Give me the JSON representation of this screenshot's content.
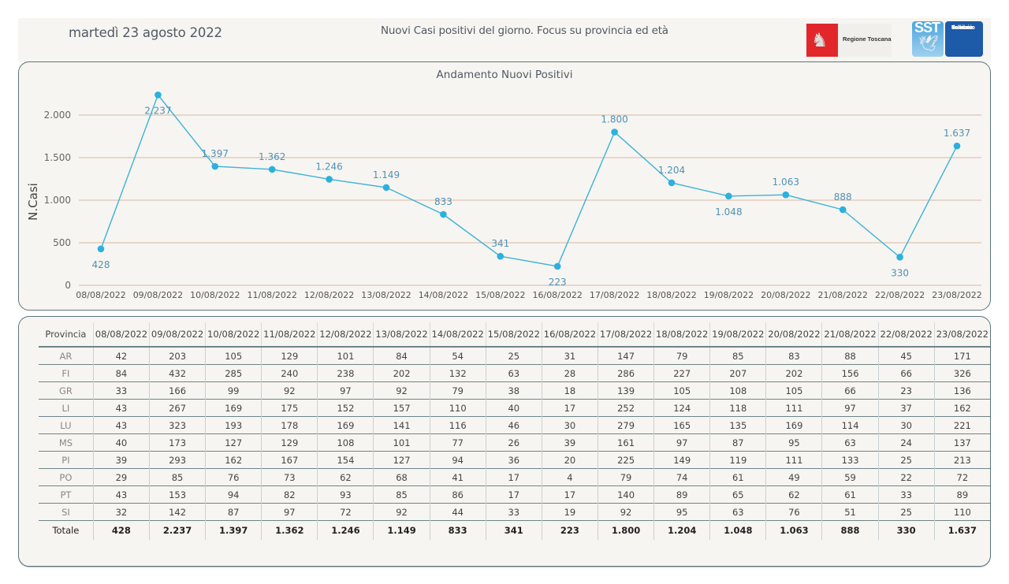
{
  "header": {
    "date": "martedì 23 agosto 2022",
    "title": "Nuovi Casi positivi del giorno. Focus su provincia ed età",
    "logo_regione": "Regione Toscana",
    "logo_sst_short": "SST",
    "logo_sst_lines": [
      "Servizio",
      "Sanitario",
      "della",
      "Toscana"
    ]
  },
  "colors": {
    "line": "#3bb2d9",
    "marker": "#2cb0de",
    "gridline": "#d9b8a4",
    "label": "#4f91b8",
    "panel_bg": "#f7f5f1",
    "border": "#5f7479"
  },
  "chart_data": {
    "type": "line",
    "title": "Andamento Nuovi Positivi",
    "xlabel": "",
    "ylabel": "N.Casi",
    "ylim": [
      0,
      2300
    ],
    "yticks": [
      0,
      500,
      1000,
      1500,
      2000
    ],
    "ytick_labels": [
      "0",
      "500",
      "1.000",
      "1.500",
      "2.000"
    ],
    "grid": true,
    "categories": [
      "08/08/2022",
      "09/08/2022",
      "10/08/2022",
      "11/08/2022",
      "12/08/2022",
      "13/08/2022",
      "14/08/2022",
      "15/08/2022",
      "16/08/2022",
      "17/08/2022",
      "18/08/2022",
      "19/08/2022",
      "20/08/2022",
      "21/08/2022",
      "22/08/2022",
      "23/08/2022"
    ],
    "series": [
      {
        "name": "Nuovi Positivi",
        "values": [
          428,
          2237,
          1397,
          1362,
          1246,
          1149,
          833,
          341,
          223,
          1800,
          1204,
          1048,
          1063,
          888,
          330,
          1637
        ],
        "labels": [
          "428",
          "2.237",
          "1.397",
          "1.362",
          "1.246",
          "1.149",
          "833",
          "341",
          "223",
          "1.800",
          "1.204",
          "1.048",
          "1.063",
          "888",
          "330",
          "1.637"
        ],
        "label_position": [
          "below",
          "below",
          "above",
          "above",
          "above",
          "above",
          "above",
          "above",
          "below",
          "above",
          "above",
          "below",
          "above",
          "above",
          "below",
          "above"
        ]
      }
    ]
  },
  "table": {
    "header_first": "Provincia",
    "columns": [
      "08/08/2022",
      "09/08/2022",
      "10/08/2022",
      "11/08/2022",
      "12/08/2022",
      "13/08/2022",
      "14/08/2022",
      "15/08/2022",
      "16/08/2022",
      "17/08/2022",
      "18/08/2022",
      "19/08/2022",
      "20/08/2022",
      "21/08/2022",
      "22/08/2022",
      "23/08/2022"
    ],
    "rows": [
      {
        "name": "AR",
        "values": [
          "42",
          "203",
          "105",
          "129",
          "101",
          "84",
          "54",
          "25",
          "31",
          "147",
          "79",
          "85",
          "83",
          "88",
          "45",
          "171"
        ]
      },
      {
        "name": "FI",
        "values": [
          "84",
          "432",
          "285",
          "240",
          "238",
          "202",
          "132",
          "63",
          "28",
          "286",
          "227",
          "207",
          "202",
          "156",
          "66",
          "326"
        ]
      },
      {
        "name": "GR",
        "values": [
          "33",
          "166",
          "99",
          "92",
          "97",
          "92",
          "79",
          "38",
          "18",
          "139",
          "105",
          "108",
          "105",
          "66",
          "23",
          "136"
        ]
      },
      {
        "name": "LI",
        "values": [
          "43",
          "267",
          "169",
          "175",
          "152",
          "157",
          "110",
          "40",
          "17",
          "252",
          "124",
          "118",
          "111",
          "97",
          "37",
          "162"
        ]
      },
      {
        "name": "LU",
        "values": [
          "43",
          "323",
          "193",
          "178",
          "169",
          "141",
          "116",
          "46",
          "30",
          "279",
          "165",
          "135",
          "169",
          "114",
          "30",
          "221"
        ]
      },
      {
        "name": "MS",
        "values": [
          "40",
          "173",
          "127",
          "129",
          "108",
          "101",
          "77",
          "26",
          "39",
          "161",
          "97",
          "87",
          "95",
          "63",
          "24",
          "137"
        ]
      },
      {
        "name": "PI",
        "values": [
          "39",
          "293",
          "162",
          "167",
          "154",
          "127",
          "94",
          "36",
          "20",
          "225",
          "149",
          "119",
          "111",
          "133",
          "25",
          "213"
        ]
      },
      {
        "name": "PO",
        "values": [
          "29",
          "85",
          "76",
          "73",
          "62",
          "68",
          "41",
          "17",
          "4",
          "79",
          "74",
          "61",
          "49",
          "59",
          "22",
          "72"
        ]
      },
      {
        "name": "PT",
        "values": [
          "43",
          "153",
          "94",
          "82",
          "93",
          "85",
          "86",
          "17",
          "17",
          "140",
          "89",
          "65",
          "62",
          "61",
          "33",
          "89"
        ]
      },
      {
        "name": "SI",
        "values": [
          "32",
          "142",
          "87",
          "97",
          "72",
          "92",
          "44",
          "33",
          "19",
          "92",
          "95",
          "63",
          "76",
          "51",
          "25",
          "110"
        ]
      }
    ],
    "total": {
      "name": "Totale",
      "values": [
        "428",
        "2.237",
        "1.397",
        "1.362",
        "1.246",
        "1.149",
        "833",
        "341",
        "223",
        "1.800",
        "1.204",
        "1.048",
        "1.063",
        "888",
        "330",
        "1.637"
      ]
    }
  }
}
